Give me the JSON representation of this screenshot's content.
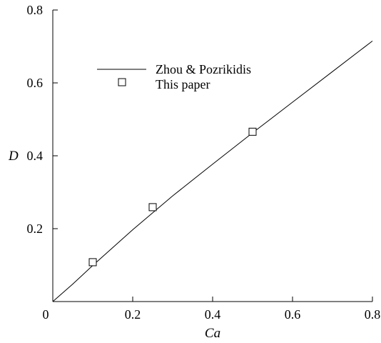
{
  "chart_data": {
    "type": "line",
    "xlabel": "Ca",
    "ylabel": "D",
    "xlim": [
      0,
      0.8
    ],
    "ylim": [
      0,
      0.8
    ],
    "x_ticks": [
      0,
      0.2,
      0.4,
      0.6,
      0.8
    ],
    "y_ticks": [
      0.2,
      0.4,
      0.6,
      0.8
    ],
    "x_tick_labels": [
      "0",
      "0.2",
      "0.4",
      "0.6",
      "0.8"
    ],
    "y_tick_labels": [
      "0.2",
      "0.4",
      "0.6",
      "0.8"
    ],
    "grid": false,
    "legend_position": "top-left",
    "series": [
      {
        "name": "Zhou & Pozrikidis",
        "style": "line",
        "color": "#000000",
        "x": [
          0,
          0.05,
          0.1,
          0.2,
          0.3,
          0.4,
          0.5,
          0.6,
          0.7,
          0.8
        ],
        "y": [
          0,
          0.048,
          0.099,
          0.197,
          0.29,
          0.377,
          0.463,
          0.547,
          0.631,
          0.715
        ]
      },
      {
        "name": "This paper",
        "style": "open-square",
        "color": "#000000",
        "x": [
          0.1,
          0.25,
          0.5
        ],
        "y": [
          0.108,
          0.259,
          0.466
        ]
      }
    ]
  }
}
